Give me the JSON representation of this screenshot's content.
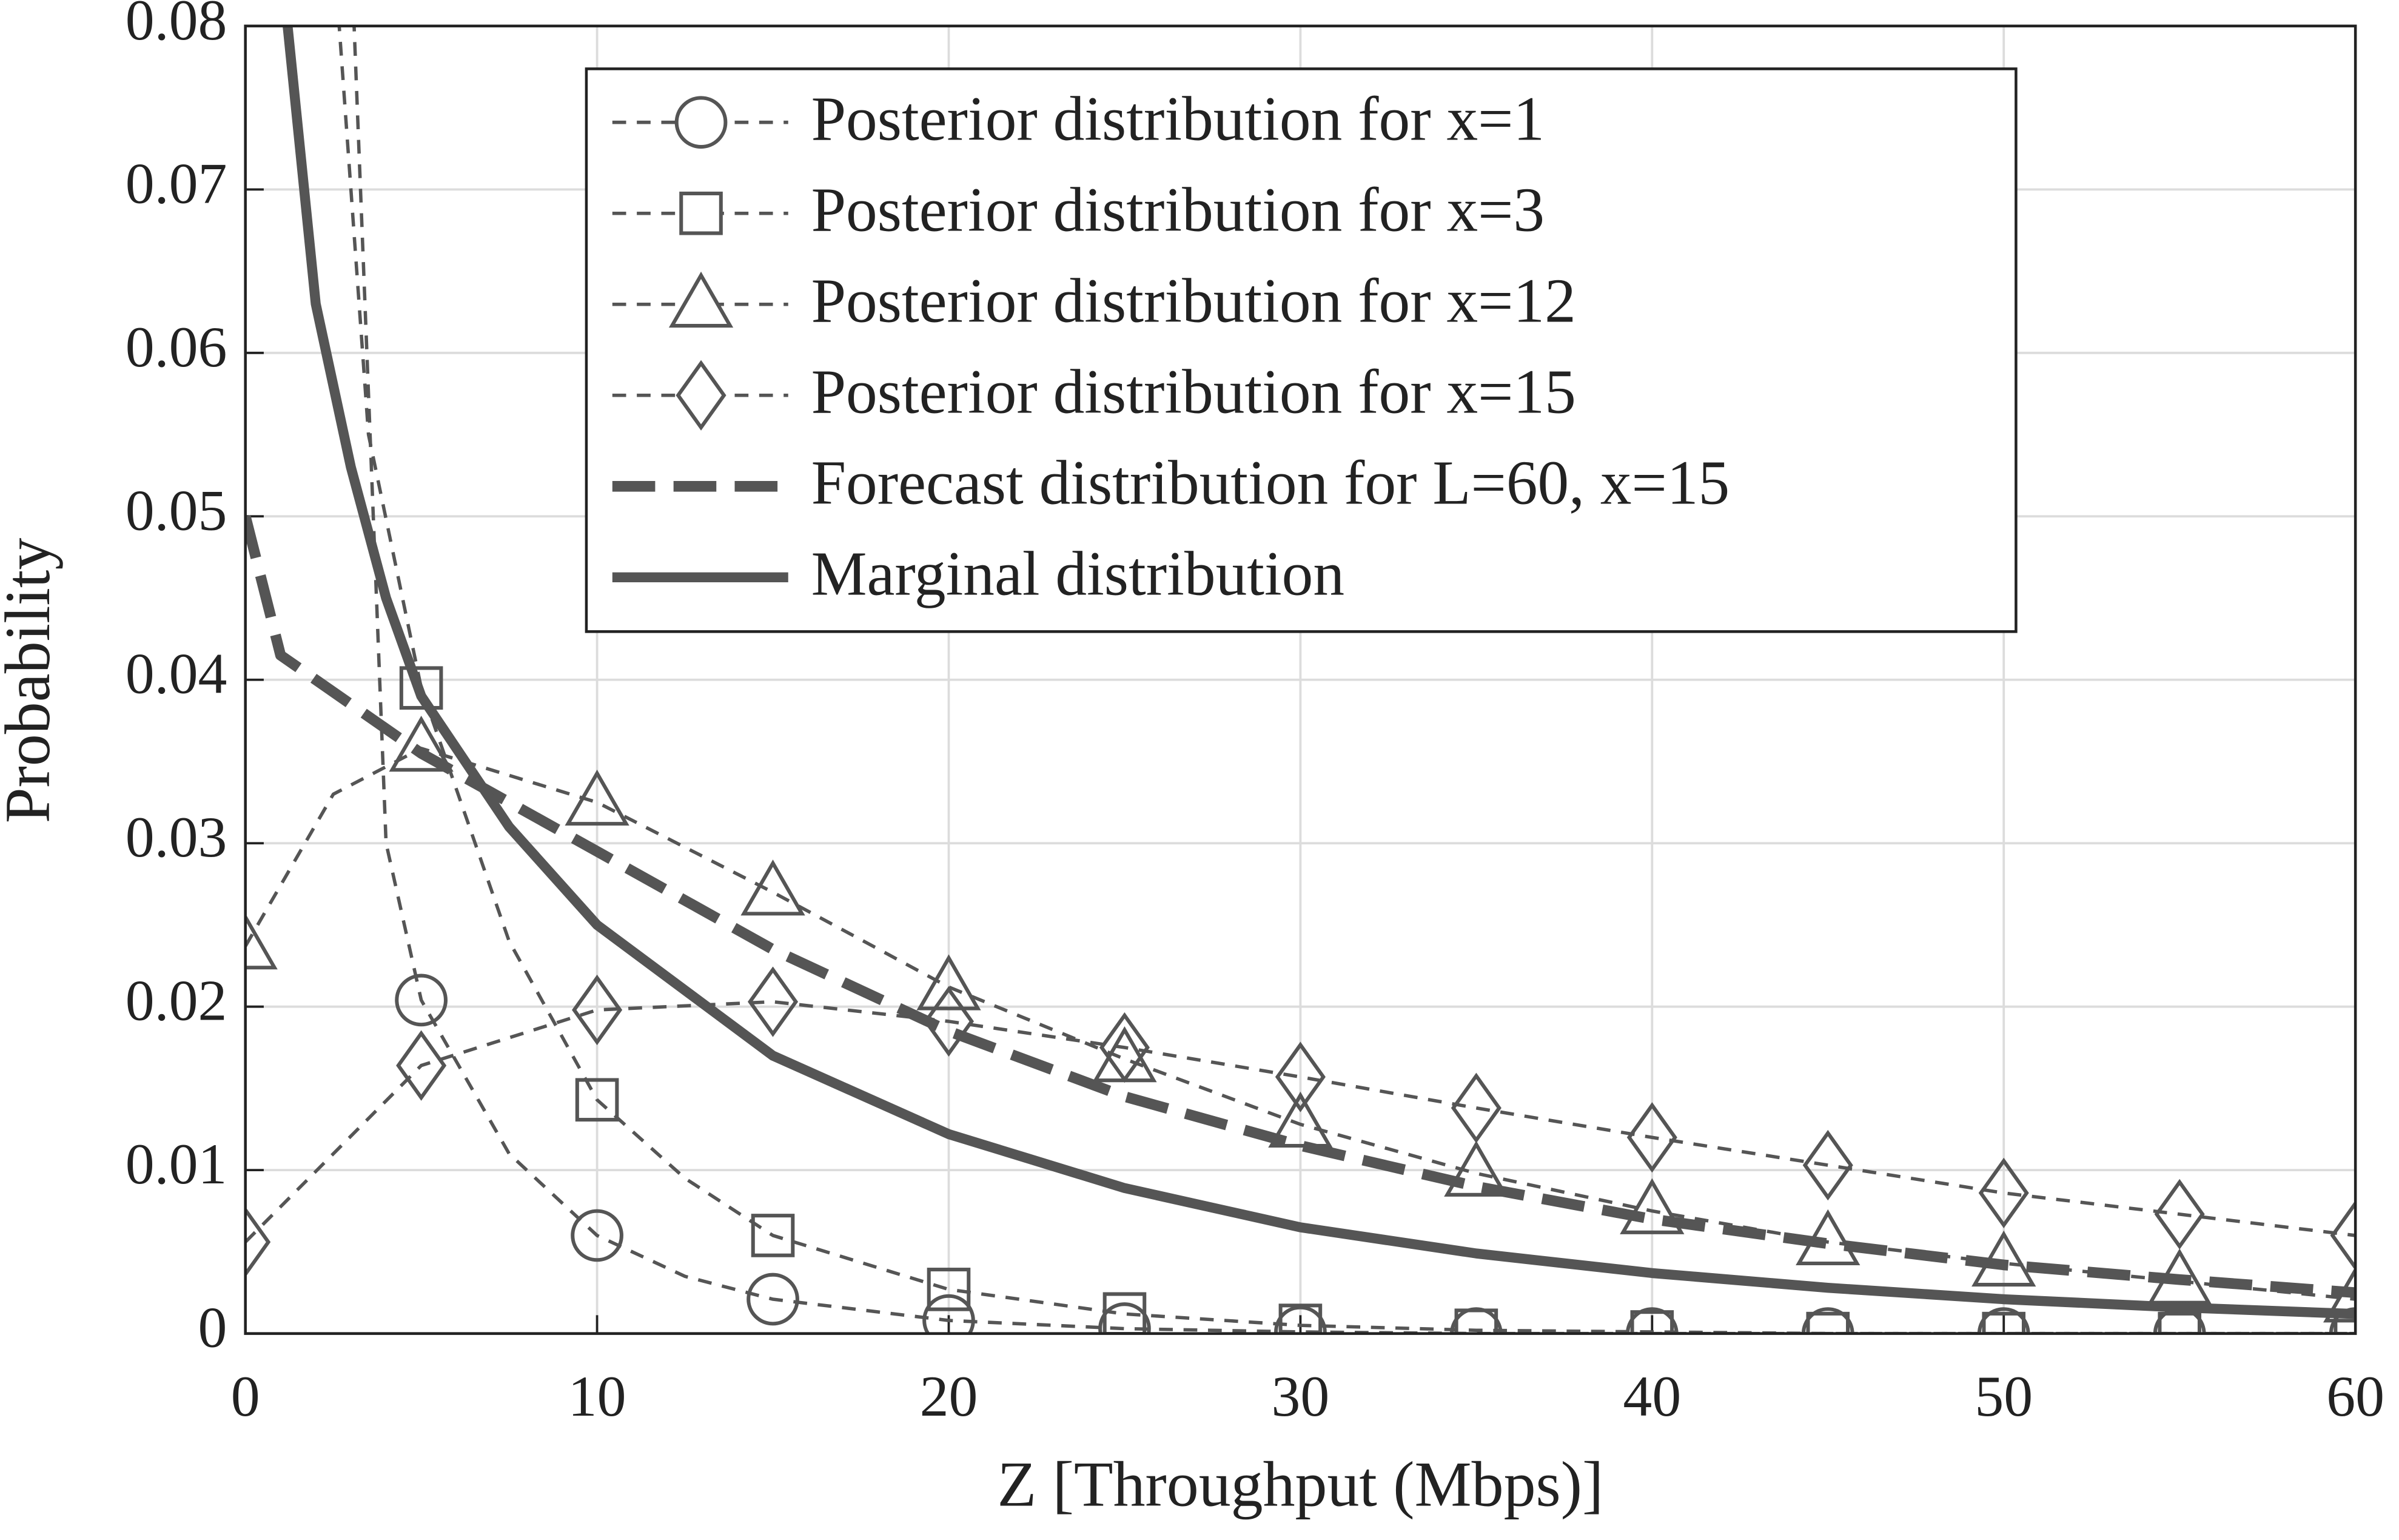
{
  "chart_data": {
    "type": "line",
    "xlabel": "Z [Throughput (Mbps)]",
    "ylabel": "Probability",
    "xlim": [
      0,
      60
    ],
    "ylim": [
      0,
      0.08
    ],
    "xticks": [
      0,
      10,
      20,
      30,
      40,
      50,
      60
    ],
    "yticks": [
      0,
      0.01,
      0.02,
      0.03,
      0.04,
      0.05,
      0.06,
      0.07,
      0.08
    ],
    "grid": true,
    "legend": "upper right",
    "series": [
      {
        "name": "Posterior distribution for x=1",
        "color": "#555555",
        "line_style": "dashed",
        "marker": "circle",
        "x": [
          3,
          4,
          5,
          7.5,
          10,
          12.5,
          15,
          20,
          25,
          30,
          35,
          40,
          45,
          50,
          55,
          60
        ],
        "values": [
          0.085,
          0.03,
          0.0204,
          0.011,
          0.006,
          0.0035,
          0.0021,
          0.0008,
          0.0003,
          0.0001,
          0,
          0,
          0,
          0,
          0,
          0
        ]
      },
      {
        "name": "Posterior distribution for x=3",
        "color": "#555555",
        "line_style": "dashed",
        "marker": "square",
        "x": [
          2.5,
          3.5,
          5,
          7.5,
          10,
          12.5,
          15,
          20,
          25,
          30,
          35,
          40,
          45,
          50,
          55,
          60
        ],
        "values": [
          0.085,
          0.055,
          0.0395,
          0.024,
          0.0143,
          0.0095,
          0.006,
          0.0027,
          0.0012,
          0.0005,
          0.0002,
          0.0001,
          0,
          0,
          0,
          0
        ]
      },
      {
        "name": "Posterior distribution for x=12",
        "color": "#555555",
        "line_style": "dashed",
        "marker": "triangle",
        "x": [
          0,
          2.5,
          5,
          10,
          15,
          20,
          25,
          30,
          35,
          40,
          45,
          50,
          55,
          60
        ],
        "values": [
          0.0237,
          0.033,
          0.0358,
          0.0325,
          0.027,
          0.0212,
          0.0168,
          0.0128,
          0.0098,
          0.0075,
          0.0056,
          0.0043,
          0.0032,
          0.0021
        ]
      },
      {
        "name": "Posterior distribution for x=15",
        "color": "#555555",
        "line_style": "dashed",
        "marker": "diamond",
        "x": [
          0,
          5,
          10,
          15,
          20,
          25,
          30,
          35,
          40,
          45,
          50,
          55,
          60
        ],
        "values": [
          0.0056,
          0.0164,
          0.0198,
          0.0203,
          0.0191,
          0.0175,
          0.0157,
          0.0138,
          0.012,
          0.0103,
          0.0086,
          0.0073,
          0.006
        ]
      },
      {
        "name": "Forecast distribution for L=60, x=15",
        "color": "#555555",
        "line_style": "thick-dashed",
        "marker": "none",
        "x": [
          0,
          1,
          5,
          10,
          15,
          20,
          25,
          30,
          35,
          40,
          45,
          50,
          55,
          60
        ],
        "values": [
          0.05,
          0.0415,
          0.0355,
          0.0295,
          0.0235,
          0.0185,
          0.0145,
          0.0115,
          0.009,
          0.007,
          0.0055,
          0.0042,
          0.0033,
          0.0025
        ]
      },
      {
        "name": "Marginal distribution",
        "color": "#555555",
        "line_style": "solid",
        "marker": "none",
        "x": [
          1.2,
          2,
          3,
          4,
          5,
          7.5,
          10,
          15,
          20,
          25,
          30,
          35,
          40,
          45,
          50,
          55,
          60
        ],
        "values": [
          0.08,
          0.063,
          0.053,
          0.045,
          0.039,
          0.031,
          0.025,
          0.017,
          0.0122,
          0.0089,
          0.0065,
          0.0049,
          0.0037,
          0.0028,
          0.0021,
          0.0016,
          0.0012
        ]
      }
    ]
  }
}
